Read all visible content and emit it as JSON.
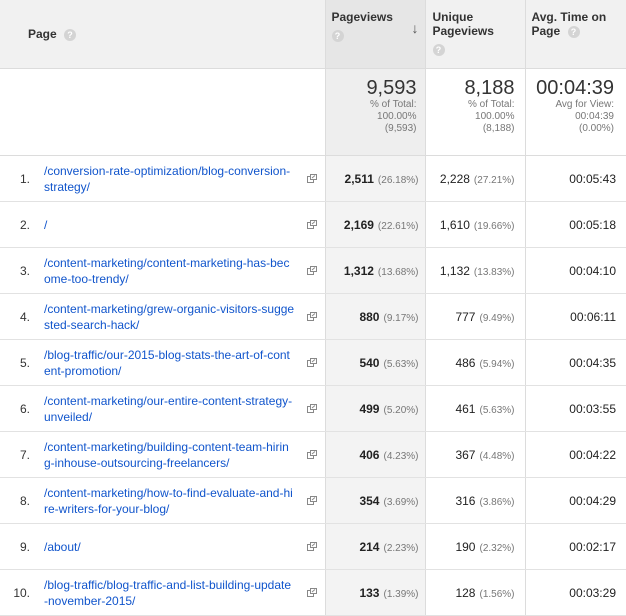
{
  "header": {
    "page": "Page",
    "pageviews": "Pageviews",
    "unique": [
      "Unique",
      "Pageviews"
    ],
    "avg_time": [
      "Avg. Time on",
      "Page"
    ],
    "help": "?",
    "sort_arrow": "↓"
  },
  "totals": {
    "pageviews": {
      "value": "9,593",
      "l1": "% of Total:",
      "l2": "100.00%",
      "l3": "(9,593)"
    },
    "unique": {
      "value": "8,188",
      "l1": "% of Total:",
      "l2": "100.00%",
      "l3": "(8,188)"
    },
    "avg_time": {
      "value": "00:04:39",
      "l1": "Avg for View:",
      "l2": "00:04:39",
      "l3": "(0.00%)"
    }
  },
  "rows": [
    {
      "n": "1.",
      "page": "/conversion-rate-optimization/blog-conversion-strategy/",
      "pv": "2,511",
      "pv_pct": "(26.18%)",
      "up": "2,228",
      "up_pct": "(27.21%)",
      "time": "00:05:43"
    },
    {
      "n": "2.",
      "page": "/",
      "pv": "2,169",
      "pv_pct": "(22.61%)",
      "up": "1,610",
      "up_pct": "(19.66%)",
      "time": "00:05:18"
    },
    {
      "n": "3.",
      "page": "/content-marketing/content-marketing-has-become-too-trendy/",
      "pv": "1,312",
      "pv_pct": "(13.68%)",
      "up": "1,132",
      "up_pct": "(13.83%)",
      "time": "00:04:10"
    },
    {
      "n": "4.",
      "page": "/content-marketing/grew-organic-visitors-suggested-search-hack/",
      "pv": "880",
      "pv_pct": "(9.17%)",
      "up": "777",
      "up_pct": "(9.49%)",
      "time": "00:06:11"
    },
    {
      "n": "5.",
      "page": "/blog-traffic/our-2015-blog-stats-the-art-of-content-promotion/",
      "pv": "540",
      "pv_pct": "(5.63%)",
      "up": "486",
      "up_pct": "(5.94%)",
      "time": "00:04:35"
    },
    {
      "n": "6.",
      "page": "/content-marketing/our-entire-content-strategy-unveiled/",
      "pv": "499",
      "pv_pct": "(5.20%)",
      "up": "461",
      "up_pct": "(5.63%)",
      "time": "00:03:55"
    },
    {
      "n": "7.",
      "page": "/content-marketing/building-content-team-hiring-inhouse-outsourcing-freelancers/",
      "pv": "406",
      "pv_pct": "(4.23%)",
      "up": "367",
      "up_pct": "(4.48%)",
      "time": "00:04:22"
    },
    {
      "n": "8.",
      "page": "/content-marketing/how-to-find-evaluate-and-hire-writers-for-your-blog/",
      "pv": "354",
      "pv_pct": "(3.69%)",
      "up": "316",
      "up_pct": "(3.86%)",
      "time": "00:04:29"
    },
    {
      "n": "9.",
      "page": "/about/",
      "pv": "214",
      "pv_pct": "(2.23%)",
      "up": "190",
      "up_pct": "(2.32%)",
      "time": "00:02:17"
    },
    {
      "n": "10.",
      "page": "/blog-traffic/blog-traffic-and-list-building-update-november-2015/",
      "pv": "133",
      "pv_pct": "(1.39%)",
      "up": "128",
      "up_pct": "(1.56%)",
      "time": "00:03:29"
    }
  ],
  "icons": {
    "external_link": "open-in-new-window-icon",
    "help": "help-circle-icon"
  },
  "colors": {
    "link": "#1155cc",
    "header_bg": "#f1f1f1",
    "sorted_col_bg": "#eeeeee"
  }
}
